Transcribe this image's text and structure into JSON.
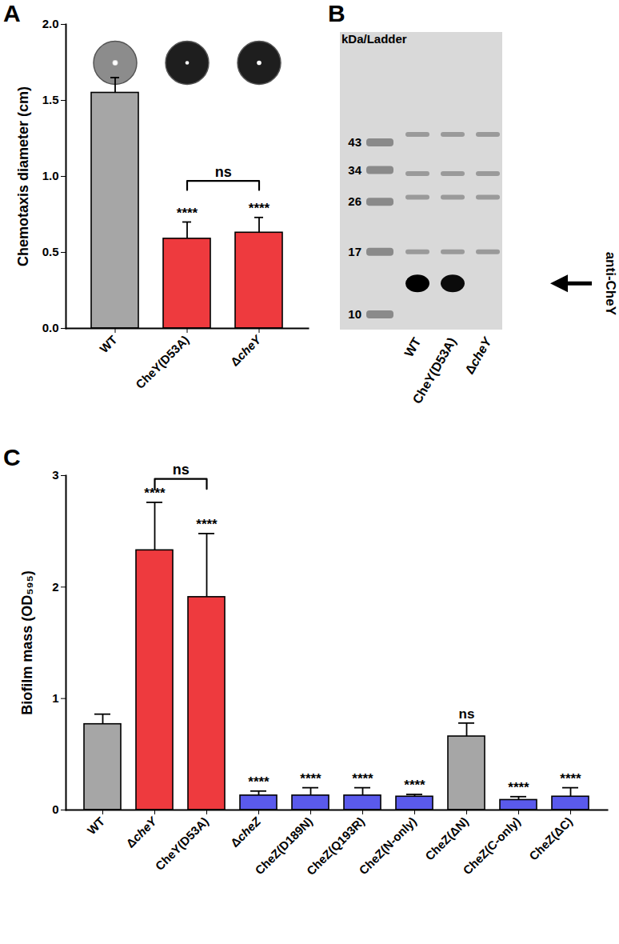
{
  "chart_data": [
    {
      "type": "bar",
      "title": "A",
      "ylabel": "Chemotaxis diameter (cm)",
      "categories": [
        "WT",
        "CheY(D53A)",
        "ΔcheY"
      ],
      "values": [
        1.55,
        0.59,
        0.63
      ],
      "errors": [
        0.1,
        0.11,
        0.1
      ],
      "colors": [
        "#a6a6a6",
        "#ee3a3e",
        "#ee3a3e"
      ],
      "ylim": [
        0,
        2
      ],
      "yticks": [
        {
          "value": 0,
          "label": "0.0"
        },
        {
          "value": 0.5,
          "label": "0.5"
        },
        {
          "value": 1,
          "label": "1.0"
        },
        {
          "value": 1.5,
          "label": "1.5"
        },
        {
          "value": 2,
          "label": "2.0"
        }
      ],
      "significance": [
        null,
        "****",
        "****"
      ],
      "comparisons": [
        {
          "from": "CheY(D53A)",
          "to": "ΔcheY",
          "label": "ns"
        }
      ]
    },
    {
      "type": "blot",
      "title": "B",
      "ylabel": "kDa/Ladder",
      "yticks": [
        43,
        34,
        26,
        17,
        10
      ],
      "categories": [
        "WT",
        "CheY(D53A)",
        "ΔcheY"
      ],
      "band_kda": 13,
      "values": [
        1,
        0.95,
        0
      ],
      "nonspecific_kda": [
        46,
        33,
        27,
        17
      ],
      "annotation": "anti-CheY"
    },
    {
      "type": "bar",
      "title": "C",
      "ylabel": "Biofilm mass (OD₅₉₅)",
      "categories": [
        "WT",
        "ΔcheY",
        "CheY(D53A)",
        "ΔcheZ",
        "CheZ(D189N)",
        "CheZ(Q193R)",
        "CheZ(N-only)",
        "CheZ(ΔN)",
        "CheZ(C-only)",
        "CheZ(ΔC)"
      ],
      "values": [
        0.77,
        2.33,
        1.91,
        0.13,
        0.13,
        0.13,
        0.12,
        0.66,
        0.09,
        0.12
      ],
      "errors": [
        0.09,
        0.43,
        0.57,
        0.04,
        0.07,
        0.07,
        0.02,
        0.12,
        0.03,
        0.08
      ],
      "colors": [
        "#a6a6a6",
        "#ee3a3e",
        "#ee3a3e",
        "#5a5aec",
        "#5a5aec",
        "#5a5aec",
        "#5a5aec",
        "#a6a6a6",
        "#5a5aec",
        "#5a5aec"
      ],
      "ylim": [
        0,
        3
      ],
      "yticks": [
        0,
        1,
        2,
        3
      ],
      "significance": [
        null,
        "****",
        "****",
        "****",
        "****",
        "****",
        "****",
        "ns",
        "****",
        "****"
      ],
      "comparisons": [
        {
          "from": "ΔcheY",
          "to": "CheY(D53A)",
          "label": "ns"
        }
      ]
    }
  ]
}
